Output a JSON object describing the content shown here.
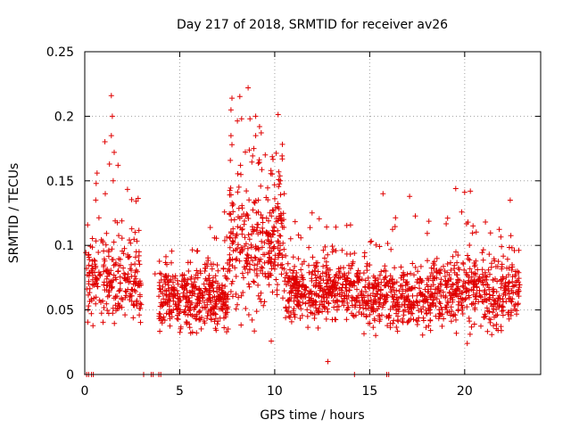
{
  "chart_data": {
    "type": "scatter",
    "title": "Day 217 of 2018, SRMTID for receiver av26",
    "xlabel": "GPS time / hours",
    "ylabel": "SRMTID / TECUs",
    "xlim": [
      0,
      24
    ],
    "ylim": [
      0,
      0.25
    ],
    "x_ticks": [
      0,
      5,
      10,
      15,
      20
    ],
    "x_tick_labels": [
      "0",
      "5",
      "10",
      "15",
      "20"
    ],
    "y_ticks": [
      0,
      0.05,
      0.1,
      0.15,
      0.2,
      0.25
    ],
    "y_tick_labels": [
      "0",
      "0.05",
      "0.1",
      "0.15",
      "0.2",
      "0.25"
    ],
    "grid": true,
    "marker": "+",
    "color": "#e00000",
    "segments": [
      {
        "x_start": 0.05,
        "x_end": 3.0,
        "base": 0.075,
        "spread": 0.03,
        "n": 260
      },
      {
        "x_start": 3.9,
        "x_end": 7.6,
        "base": 0.06,
        "spread": 0.02,
        "n": 420
      },
      {
        "x_start": 7.6,
        "x_end": 10.5,
        "base": 0.1,
        "spread": 0.04,
        "n": 320
      },
      {
        "x_start": 10.5,
        "x_end": 14.5,
        "base": 0.065,
        "spread": 0.02,
        "n": 420
      },
      {
        "x_start": 14.5,
        "x_end": 19.0,
        "base": 0.06,
        "spread": 0.02,
        "n": 420
      },
      {
        "x_start": 19.0,
        "x_end": 22.9,
        "base": 0.065,
        "spread": 0.025,
        "n": 380
      }
    ],
    "peaks": [
      {
        "x": 1.4,
        "y": 0.216
      },
      {
        "x": 1.45,
        "y": 0.2
      },
      {
        "x": 1.4,
        "y": 0.185
      },
      {
        "x": 1.55,
        "y": 0.172
      },
      {
        "x": 1.3,
        "y": 0.163
      },
      {
        "x": 1.75,
        "y": 0.162
      },
      {
        "x": 0.65,
        "y": 0.156
      },
      {
        "x": 0.6,
        "y": 0.148
      },
      {
        "x": 1.5,
        "y": 0.15
      },
      {
        "x": 7.75,
        "y": 0.214
      },
      {
        "x": 7.7,
        "y": 0.205
      },
      {
        "x": 8.6,
        "y": 0.222
      },
      {
        "x": 9.0,
        "y": 0.2
      },
      {
        "x": 8.7,
        "y": 0.198
      },
      {
        "x": 9.2,
        "y": 0.192
      },
      {
        "x": 7.7,
        "y": 0.185
      },
      {
        "x": 7.75,
        "y": 0.178
      },
      {
        "x": 9.0,
        "y": 0.185
      },
      {
        "x": 8.9,
        "y": 0.175
      },
      {
        "x": 9.5,
        "y": 0.17
      },
      {
        "x": 10.4,
        "y": 0.167
      },
      {
        "x": 8.2,
        "y": 0.162
      },
      {
        "x": 9.8,
        "y": 0.158
      },
      {
        "x": 10.3,
        "y": 0.15
      },
      {
        "x": 10.5,
        "y": 0.14
      },
      {
        "x": 20.3,
        "y": 0.142
      },
      {
        "x": 22.4,
        "y": 0.135
      },
      {
        "x": 15.7,
        "y": 0.14
      },
      {
        "x": 17.1,
        "y": 0.138
      },
      {
        "x": 12.8,
        "y": 0.01
      },
      {
        "x": 14.2,
        "y": 0.058
      },
      {
        "x": 3.7,
        "y": 0.078
      }
    ],
    "zeros": [
      0.1,
      0.2,
      0.35,
      0.45,
      3.1,
      3.5,
      3.6,
      3.9,
      4.0,
      14.2,
      15.9,
      16.0
    ]
  }
}
